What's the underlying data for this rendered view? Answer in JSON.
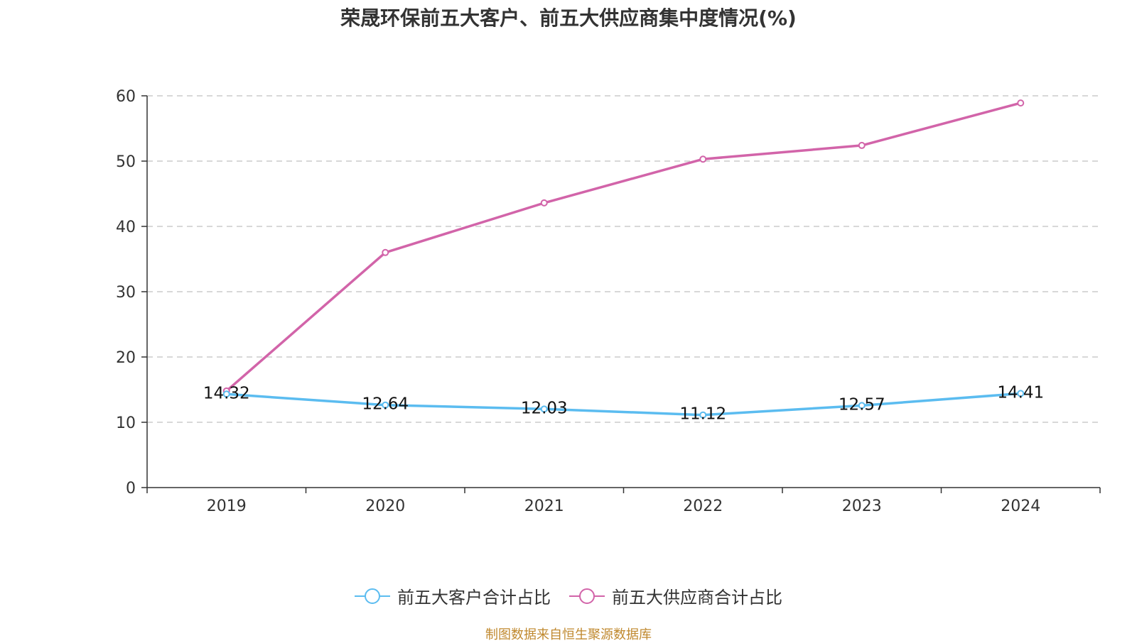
{
  "chart_data": {
    "type": "line",
    "title": "荣晟环保前五大客户、前五大供应商集中度情况(%)",
    "categories": [
      "2019",
      "2020",
      "2021",
      "2022",
      "2023",
      "2024"
    ],
    "ylim": [
      0,
      60
    ],
    "yticks": [
      0,
      10,
      20,
      30,
      40,
      50,
      60
    ],
    "grid": true,
    "legend_position": "bottom",
    "series": [
      {
        "name": "前五大客户合计占比",
        "values": [
          14.32,
          12.64,
          12.03,
          11.12,
          12.57,
          14.41
        ],
        "value_labels": [
          "14.32",
          "12.64",
          "12.03",
          "11.12",
          "12.57",
          "14.41"
        ],
        "show_labels": true,
        "color": "#5bbcf0"
      },
      {
        "name": "前五大供应商合计占比",
        "values": [
          14.8,
          36.0,
          43.6,
          50.3,
          52.4,
          58.9
        ],
        "show_labels": false,
        "color": "#d264a9"
      }
    ]
  },
  "source_note": "制图数据来自恒生聚源数据库"
}
